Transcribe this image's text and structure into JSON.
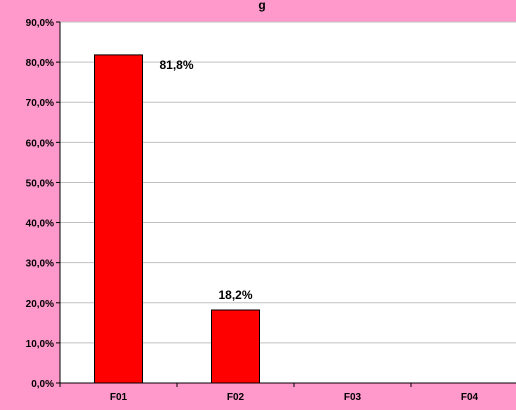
{
  "chart_data": {
    "type": "bar",
    "title": "g",
    "xlabel": "",
    "ylabel": "",
    "categories": [
      "F01",
      "F02",
      "F03",
      "F04"
    ],
    "values": [
      81.8,
      18.2,
      null,
      null
    ],
    "data_labels": [
      "81,8%",
      "18,2%",
      "",
      ""
    ],
    "y_ticks": [
      "0,0%",
      "10,0%",
      "20,0%",
      "30,0%",
      "40,0%",
      "50,0%",
      "60,0%",
      "70,0%",
      "80,0%",
      "90,0%"
    ],
    "ylim": [
      0,
      90
    ],
    "y_step": 10,
    "grid": true,
    "legend": "none",
    "colors": {
      "background": "#ff99cc",
      "plot_area": "#ffffff",
      "bar": "#ff0000",
      "bar_border": "#000000",
      "gridline": "#c0c0c0",
      "axis": "#000000"
    }
  }
}
